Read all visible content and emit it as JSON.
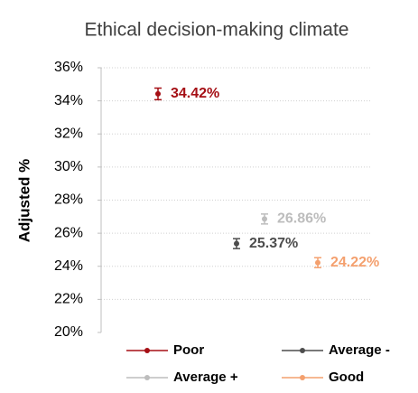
{
  "chart_data": {
    "type": "errorbar",
    "title": "Ethical decision-making climate",
    "y_label": "Adjusted %",
    "series": [
      {
        "name": "Poor",
        "color": "#a50f15",
        "values": [
          34.42
        ],
        "errors": [
          0.35
        ],
        "value_labels": [
          "34.42%"
        ]
      },
      {
        "name": "Average -",
        "color": "#4d4d4d",
        "values": [
          25.37
        ],
        "errors": [
          0.3
        ],
        "value_labels": [
          "25.37%"
        ]
      },
      {
        "name": "Average +",
        "color": "#bdbdbd",
        "values": [
          26.86
        ],
        "errors": [
          0.3
        ],
        "value_labels": [
          "26.86%"
        ]
      },
      {
        "name": "Good",
        "color": "#f4a06e",
        "values": [
          24.22
        ],
        "errors": [
          0.3
        ],
        "value_labels": [
          "24.22%"
        ]
      }
    ],
    "ylim": [
      20,
      36
    ],
    "yticks": [
      {
        "value": 20,
        "label": "20%"
      },
      {
        "value": 22,
        "label": "22%"
      },
      {
        "value": 24,
        "label": "24%"
      },
      {
        "value": 26,
        "label": "26%"
      },
      {
        "value": 28,
        "label": "28%"
      },
      {
        "value": 30,
        "label": "30%"
      },
      {
        "value": 32,
        "label": "32%"
      },
      {
        "value": 34,
        "label": "34%"
      },
      {
        "value": 36,
        "label": "36%"
      }
    ],
    "grid": true
  }
}
